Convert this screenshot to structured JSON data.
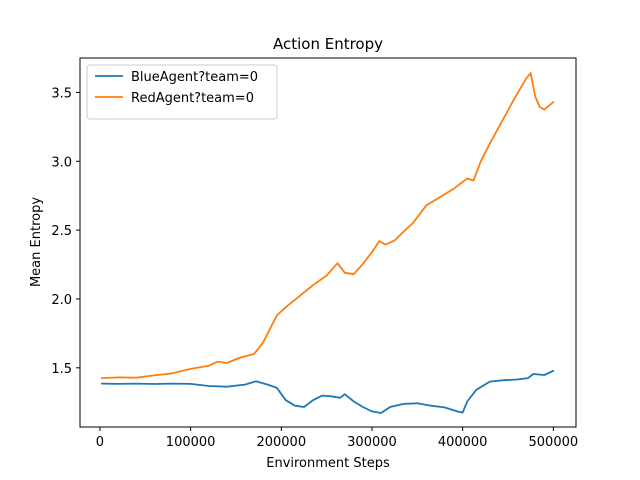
{
  "chart_data": {
    "type": "line",
    "title": "Action Entropy",
    "xlabel": "Environment Steps",
    "ylabel": "Mean Entropy",
    "xlim": [
      -22000,
      525000
    ],
    "ylim": [
      1.07,
      3.75
    ],
    "xticks": [
      0,
      100000,
      200000,
      300000,
      400000,
      500000
    ],
    "xtick_labels": [
      "0",
      "100000",
      "200000",
      "300000",
      "400000",
      "500000"
    ],
    "yticks": [
      1.5,
      2.0,
      2.5,
      3.0,
      3.5
    ],
    "ytick_labels": [
      "1.5",
      "2.0",
      "2.5",
      "3.0",
      "3.5"
    ],
    "grid": false,
    "legend_position": "top-left",
    "series": [
      {
        "name": "BlueAgent?team=0",
        "color": "#1f77b4",
        "x": [
          2000,
          20000,
          40000,
          60000,
          80000,
          100000,
          120000,
          140000,
          160000,
          172000,
          185000,
          195000,
          205000,
          215000,
          225000,
          235000,
          245000,
          255000,
          265000,
          270000,
          280000,
          290000,
          300000,
          310000,
          320000,
          335000,
          350000,
          365000,
          380000,
          395000,
          400000,
          405000,
          415000,
          430000,
          445000,
          460000,
          472000,
          478000,
          490000,
          500000
        ],
        "y": [
          1.385,
          1.383,
          1.385,
          1.382,
          1.385,
          1.383,
          1.368,
          1.363,
          1.378,
          1.402,
          1.378,
          1.355,
          1.265,
          1.225,
          1.215,
          1.265,
          1.298,
          1.293,
          1.282,
          1.308,
          1.255,
          1.215,
          1.183,
          1.172,
          1.215,
          1.238,
          1.242,
          1.225,
          1.212,
          1.182,
          1.175,
          1.255,
          1.34,
          1.4,
          1.41,
          1.415,
          1.425,
          1.455,
          1.448,
          1.478
        ]
      },
      {
        "name": "RedAgent?team=0",
        "color": "#ff7f0e",
        "x": [
          2000,
          20000,
          40000,
          60000,
          80000,
          100000,
          120000,
          130000,
          140000,
          155000,
          170000,
          180000,
          195000,
          205000,
          220000,
          235000,
          250000,
          262000,
          270000,
          280000,
          290000,
          300000,
          308000,
          315000,
          325000,
          335000,
          345000,
          360000,
          375000,
          390000,
          405000,
          412000,
          420000,
          430000,
          445000,
          460000,
          470000,
          475000,
          480000,
          485000,
          490000,
          500000
        ],
        "y": [
          1.425,
          1.43,
          1.428,
          1.445,
          1.46,
          1.492,
          1.515,
          1.545,
          1.535,
          1.575,
          1.6,
          1.685,
          1.88,
          1.94,
          2.02,
          2.1,
          2.17,
          2.26,
          2.19,
          2.18,
          2.255,
          2.34,
          2.42,
          2.395,
          2.425,
          2.49,
          2.55,
          2.68,
          2.74,
          2.8,
          2.875,
          2.86,
          3.0,
          3.13,
          3.31,
          3.49,
          3.6,
          3.64,
          3.47,
          3.395,
          3.375,
          3.43
        ]
      }
    ]
  }
}
